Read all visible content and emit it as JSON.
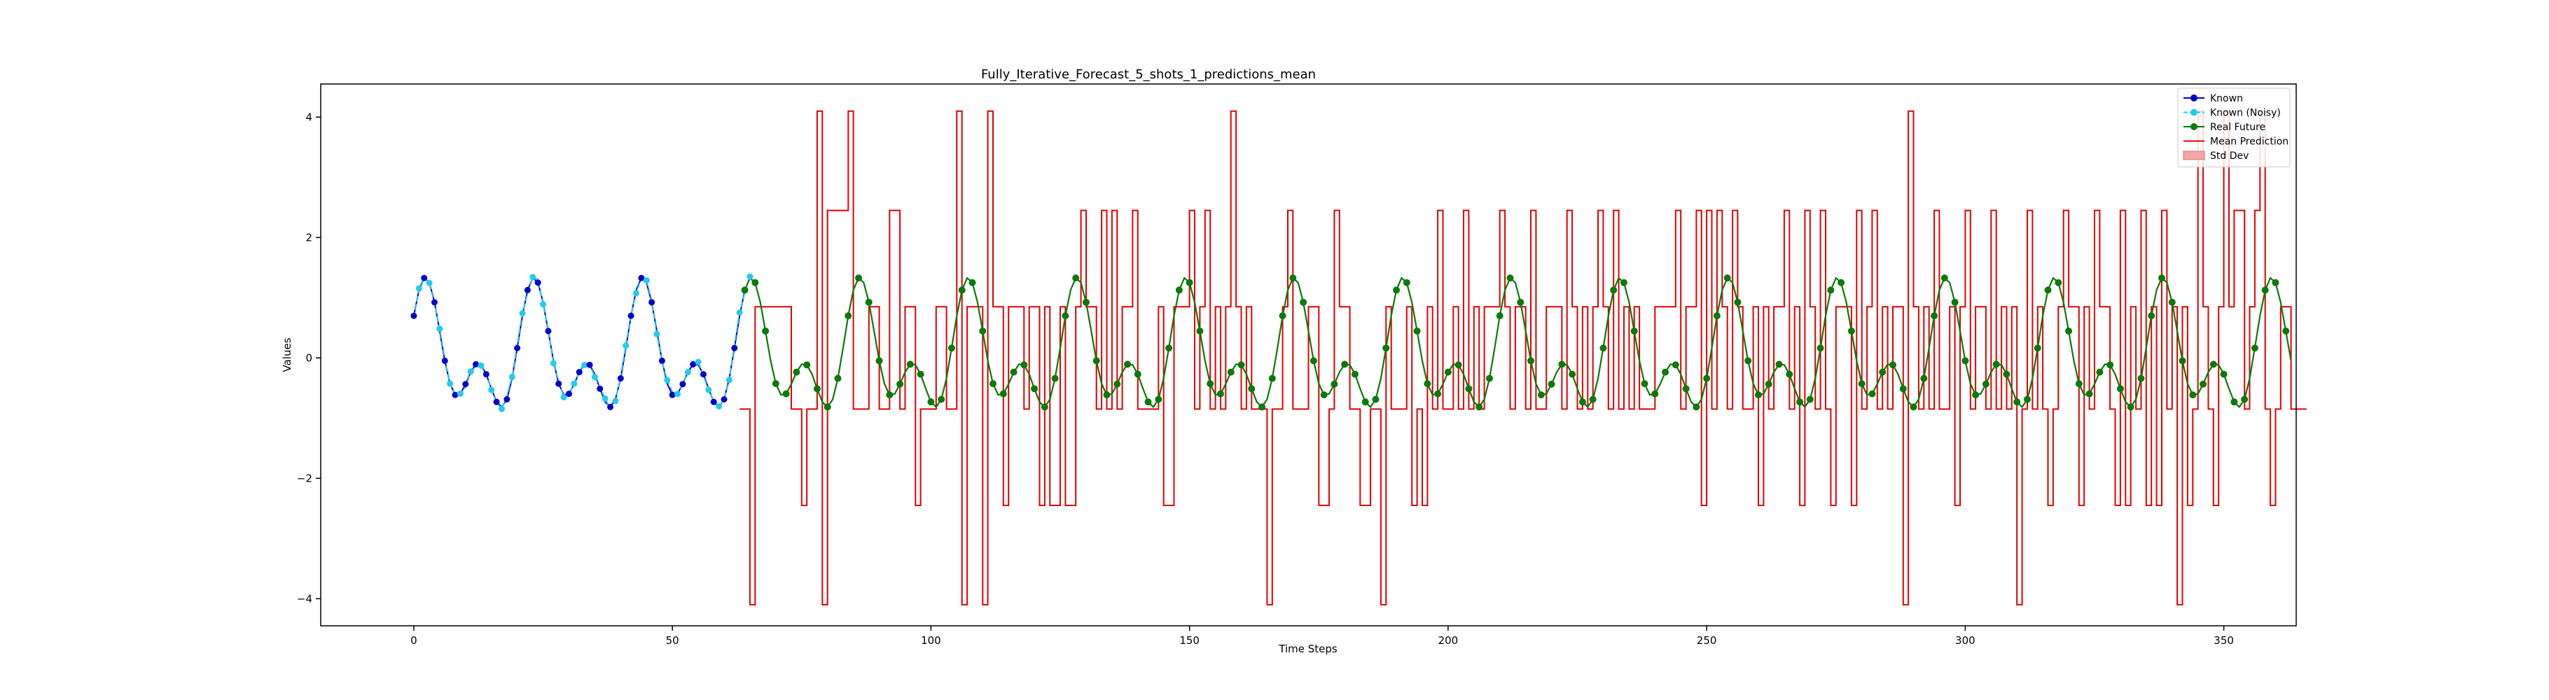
{
  "chart_data": {
    "type": "line",
    "title": "Fully_Iterative_Forecast_5_shots_1_predictions_mean",
    "xlabel": "Time Steps",
    "ylabel": "Values",
    "xlim": [
      -18,
      364
    ],
    "ylim": [
      -4.45,
      4.55
    ],
    "xticks": [
      0,
      50,
      100,
      150,
      200,
      250,
      300,
      350
    ],
    "yticks": [
      -4,
      -2,
      0,
      2,
      4
    ],
    "grid": false,
    "legend": {
      "placement": "top-right",
      "entries": [
        {
          "label": "Known",
          "kind": "line-marker",
          "color": "#0000cc"
        },
        {
          "label": "Known (Noisy)",
          "kind": "dash-marker",
          "color": "#22ccee"
        },
        {
          "label": "Real Future",
          "kind": "line-marker",
          "color": "#0a7a0a"
        },
        {
          "label": "Mean Prediction",
          "kind": "line",
          "color": "#e00000"
        },
        {
          "label": "Std Dev",
          "kind": "patch",
          "color": "#f4a6a6"
        }
      ]
    },
    "signal": {
      "description_free": true,
      "period": 21,
      "terms": [
        {
          "amp": 0.72,
          "cycles": 1,
          "phase": 0.8
        },
        {
          "amp": 0.62,
          "cycles": 2,
          "phase": 0.3
        }
      ]
    },
    "series": [
      {
        "name": "Known",
        "x_range": [
          0,
          64
        ],
        "style": "solid",
        "color": "#0000cc",
        "marker": "circle"
      },
      {
        "name": "Known (Noisy)",
        "x_range": [
          0,
          64
        ],
        "style": "dashed",
        "color": "#22ccee",
        "marker": "circle"
      },
      {
        "name": "Real Future",
        "x_range": [
          64,
          363
        ],
        "style": "solid",
        "color": "#0a7a0a",
        "marker": "circle"
      },
      {
        "name": "Mean Prediction",
        "x_start": 63,
        "style": "step",
        "color": "#e00000",
        "values": [
          -0.85,
          -0.85,
          -4.1,
          0.85,
          0.85,
          0.85,
          0.85,
          0.85,
          0.85,
          0.85,
          -0.85,
          -0.85,
          -2.45,
          -0.85,
          -0.85,
          4.1,
          -4.1,
          2.45,
          2.45,
          2.45,
          2.45,
          4.1,
          -0.85,
          -0.85,
          -0.85,
          0.85,
          0.85,
          -0.85,
          -0.85,
          2.45,
          2.45,
          -0.85,
          0.85,
          0.85,
          -2.45,
          -0.85,
          -0.85,
          -0.85,
          0.85,
          0.85,
          -0.85,
          -0.85,
          4.1,
          -4.1,
          0.85,
          0.85,
          0.85,
          -4.1,
          4.1,
          0.85,
          0.85,
          -2.45,
          0.85,
          0.85,
          0.85,
          -0.85,
          0.85,
          0.85,
          -2.45,
          0.85,
          -2.45,
          -2.45,
          0.85,
          -2.45,
          -2.45,
          0.85,
          2.45,
          0.85,
          0.85,
          -0.85,
          2.45,
          -0.85,
          2.45,
          -0.85,
          0.85,
          0.85,
          2.45,
          -0.85,
          -0.85,
          -0.85,
          -0.85,
          0.85,
          -2.45,
          -2.45,
          0.85,
          0.85,
          0.85,
          2.45,
          -0.85,
          0.85,
          2.45,
          -0.85,
          0.85,
          -0.85,
          0.85,
          4.1,
          0.85,
          -0.85,
          0.85,
          -0.85,
          -0.85,
          -0.85,
          -4.1,
          -0.85,
          -0.85,
          0.85,
          2.45,
          -0.85,
          -0.85,
          -0.85,
          0.85,
          0.85,
          -2.45,
          -2.45,
          -0.85,
          2.45,
          0.85,
          0.85,
          -0.85,
          -0.85,
          -2.45,
          -2.45,
          -0.85,
          -0.85,
          -4.1,
          0.85,
          -0.85,
          -0.85,
          -0.85,
          0.85,
          -2.45,
          -0.85,
          -2.45,
          0.85,
          -0.85,
          2.45,
          -0.85,
          -0.85,
          0.85,
          -0.85,
          2.45,
          -0.85,
          0.85,
          -0.85,
          0.85,
          0.85,
          0.85,
          2.45,
          0.85,
          -0.85,
          0.85,
          0.85,
          -0.85,
          2.45,
          -0.85,
          -0.85,
          0.85,
          0.85,
          0.85,
          -0.85,
          2.45,
          0.85,
          -0.85,
          0.85,
          -0.85,
          0.85,
          2.45,
          0.85,
          -0.85,
          2.45,
          -0.85,
          0.85,
          -0.85,
          0.85,
          -0.85,
          -0.85,
          -0.85,
          0.85,
          0.85,
          0.85,
          0.85,
          2.45,
          -0.85,
          0.85,
          0.85,
          2.45,
          -2.45,
          2.45,
          -0.85,
          2.45,
          0.85,
          -0.85,
          2.45,
          0.85,
          -0.85,
          -0.85,
          0.85,
          -2.45,
          0.85,
          -0.85,
          0.85,
          0.85,
          2.45,
          -0.85,
          0.85,
          -2.45,
          2.45,
          0.85,
          -0.85,
          2.45,
          -0.85,
          -2.45,
          0.85,
          0.85,
          0.85,
          -2.45,
          2.45,
          -0.85,
          0.85,
          2.45,
          -0.85,
          0.85,
          -0.85,
          0.85,
          0.85,
          -4.1,
          4.1,
          0.85,
          -0.85,
          0.85,
          -0.85,
          2.45,
          -0.85,
          -0.85,
          0.85,
          -2.45,
          0.85,
          2.45,
          -0.85,
          0.85,
          0.85,
          -0.85,
          2.45,
          -0.85,
          0.85,
          -0.85,
          0.85,
          -4.1,
          -0.85,
          2.45,
          -0.85,
          0.85,
          -0.85,
          -2.45,
          -0.85,
          0.85,
          2.45,
          0.85,
          0.85,
          -2.45,
          0.85,
          -0.85,
          2.45,
          0.85,
          0.85,
          -0.85,
          -2.45,
          2.45,
          -2.45,
          0.85,
          -0.85,
          2.45,
          -2.45,
          0.85,
          -2.45,
          2.45,
          -0.85,
          0.85,
          -4.1,
          0.85,
          -2.45,
          -0.85,
          4.1,
          0.85,
          -0.85,
          -2.45,
          0.85,
          4.1,
          0.85,
          2.45,
          2.45,
          -0.85,
          0.85,
          2.45,
          4.1,
          -0.85,
          -2.45,
          -0.85,
          0.85,
          0.85,
          -0.85,
          -0.85,
          -0.85
        ]
      }
    ]
  }
}
